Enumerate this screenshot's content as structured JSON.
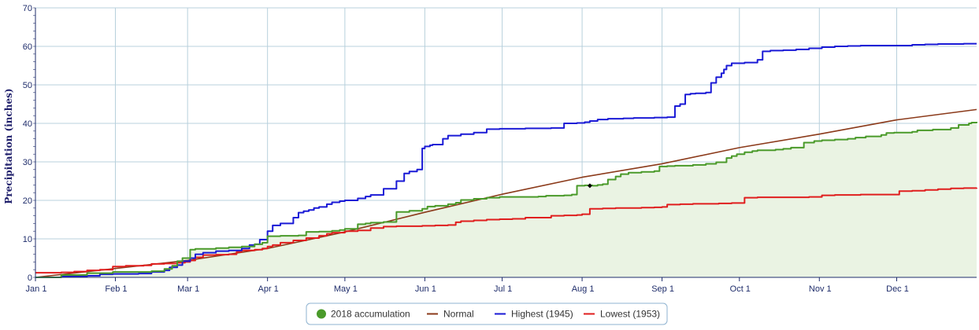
{
  "chart_data": {
    "type": "line",
    "ylabel": "Precipitation (inches)",
    "xlabel": "",
    "ylim": [
      0,
      70
    ],
    "yticks": [
      0,
      10,
      20,
      30,
      40,
      50,
      60,
      70
    ],
    "xlim": [
      0,
      365
    ],
    "x_unit": "day of year",
    "xticks": [
      {
        "label": "Jan 1",
        "day": 0
      },
      {
        "label": "Feb 1",
        "day": 31
      },
      {
        "label": "Mar 1",
        "day": 59
      },
      {
        "label": "Apr 1",
        "day": 90
      },
      {
        "label": "May 1",
        "day": 120
      },
      {
        "label": "Jun 1",
        "day": 151
      },
      {
        "label": "Jul 1",
        "day": 181
      },
      {
        "label": "Aug 1",
        "day": 212
      },
      {
        "label": "Sep 1",
        "day": 243
      },
      {
        "label": "Oct 1",
        "day": 273
      },
      {
        "label": "Nov 1",
        "day": 304
      },
      {
        "label": "Dec 1",
        "day": 334
      }
    ],
    "grid": true,
    "legend_position": "bottom-center",
    "colors": {
      "accumulation_line": "#4a9a2a",
      "accumulation_fill": "#eaf3e3",
      "normal": "#8b3a1a",
      "highest": "#1a1ad6",
      "lowest": "#e01e1e",
      "grid": "#b8d0dc",
      "axis": "#1f2d6b"
    },
    "series": [
      {
        "name": "2018 accumulation",
        "key": "accumulation",
        "step": true,
        "x": [
          0,
          10,
          20,
          30,
          45,
          50,
          53,
          55,
          57,
          60,
          62,
          65,
          70,
          75,
          80,
          85,
          88,
          90,
          95,
          100,
          102,
          105,
          110,
          115,
          118,
          120,
          125,
          128,
          130,
          135,
          140,
          145,
          150,
          152,
          155,
          160,
          163,
          165,
          170,
          175,
          180,
          190,
          195,
          198,
          205,
          208,
          210,
          213,
          216,
          218,
          220,
          222,
          225,
          227,
          230,
          235,
          240,
          242,
          245,
          248,
          255,
          260,
          264,
          268,
          270,
          272,
          275,
          278,
          280,
          283,
          287,
          290,
          293,
          298,
          302,
          305,
          310,
          315,
          318,
          322,
          328,
          330,
          333,
          335,
          340,
          342,
          348,
          355,
          358,
          362,
          363,
          365
        ],
        "y": [
          0,
          0.6,
          1.1,
          1.4,
          1.6,
          2.2,
          3.0,
          4.2,
          5.0,
          7.2,
          7.4,
          7.4,
          7.6,
          7.8,
          8.0,
          8.6,
          9.0,
          10.7,
          10.8,
          10.8,
          10.9,
          11.8,
          11.9,
          12.1,
          12.3,
          12.6,
          13.8,
          14.0,
          14.2,
          14.4,
          17.0,
          17.3,
          17.8,
          18.4,
          18.6,
          19.0,
          19.4,
          20.1,
          20.4,
          20.7,
          20.9,
          20.9,
          21.0,
          21.2,
          21.3,
          21.5,
          23.8,
          23.9,
          23.8,
          24.0,
          24.2,
          25.4,
          26.2,
          26.8,
          27.2,
          27.4,
          27.6,
          28.8,
          28.9,
          29.0,
          29.2,
          29.5,
          29.9,
          31.0,
          31.5,
          32.0,
          32.5,
          32.8,
          33.0,
          33.0,
          33.2,
          33.4,
          33.7,
          35.0,
          35.4,
          35.6,
          35.8,
          36.0,
          36.3,
          36.6,
          37.0,
          37.5,
          37.6,
          37.6,
          37.8,
          38.2,
          38.4,
          38.8,
          39.6,
          40.0,
          40.2,
          40.4
        ]
      },
      {
        "name": "Normal",
        "key": "normal",
        "step": false,
        "x": [
          0,
          31,
          59,
          90,
          120,
          151,
          181,
          212,
          243,
          273,
          304,
          334,
          365
        ],
        "y": [
          0,
          2.3,
          4.4,
          7.5,
          11.8,
          16.9,
          21.6,
          26.0,
          29.5,
          33.7,
          37.2,
          40.9,
          43.6
        ]
      },
      {
        "name": "Highest (1945)",
        "key": "highest",
        "step": true,
        "x": [
          0,
          10,
          20,
          25,
          30,
          40,
          45,
          50,
          52,
          55,
          57,
          60,
          62,
          65,
          70,
          75,
          80,
          83,
          85,
          87,
          90,
          92,
          95,
          100,
          102,
          104,
          106,
          108,
          110,
          113,
          115,
          118,
          120,
          125,
          128,
          130,
          135,
          140,
          143,
          145,
          148,
          150,
          151,
          153,
          154,
          158,
          160,
          165,
          170,
          175,
          180,
          190,
          200,
          205,
          210,
          213,
          215,
          218,
          222,
          228,
          232,
          240,
          245,
          248,
          250,
          252,
          254,
          256,
          260,
          262,
          264,
          266,
          267,
          268,
          270,
          272,
          275,
          280,
          282,
          285,
          290,
          295,
          300,
          305,
          310,
          315,
          320,
          330,
          340,
          345,
          350,
          355,
          360,
          365
        ],
        "y": [
          0,
          0.2,
          0.4,
          0.8,
          0.9,
          1.0,
          1.4,
          1.8,
          2.6,
          3.2,
          4.2,
          5.0,
          6.0,
          6.4,
          6.8,
          7.0,
          7.5,
          8.4,
          8.6,
          9.8,
          12.0,
          13.5,
          14.0,
          15.5,
          16.8,
          17.2,
          17.5,
          18.0,
          18.3,
          19.0,
          19.5,
          19.8,
          20.0,
          20.5,
          21.0,
          21.4,
          23.0,
          25.0,
          27.0,
          27.5,
          28.0,
          33.5,
          34.0,
          34.3,
          34.5,
          36.0,
          36.8,
          37.2,
          37.6,
          38.5,
          38.6,
          38.7,
          38.8,
          40.0,
          40.1,
          40.3,
          40.6,
          41.0,
          41.2,
          41.3,
          41.4,
          41.5,
          41.6,
          44.5,
          45.0,
          47.5,
          47.7,
          47.8,
          48.0,
          50.5,
          52.0,
          53.0,
          54.0,
          55.0,
          55.6,
          55.6,
          55.8,
          56.5,
          58.7,
          58.9,
          59.0,
          59.2,
          59.5,
          59.8,
          60.0,
          60.1,
          60.2,
          60.2,
          60.4,
          60.5,
          60.6,
          60.6,
          60.7,
          60.7
        ]
      },
      {
        "name": "Lowest (1953)",
        "key": "lowest",
        "step": true,
        "x": [
          0,
          5,
          10,
          15,
          20,
          25,
          30,
          35,
          40,
          42,
          45,
          50,
          55,
          58,
          60,
          62,
          65,
          70,
          75,
          78,
          80,
          85,
          88,
          90,
          92,
          95,
          100,
          105,
          110,
          113,
          115,
          120,
          125,
          130,
          135,
          140,
          145,
          150,
          155,
          160,
          163,
          165,
          170,
          175,
          180,
          185,
          190,
          200,
          205,
          210,
          212,
          215,
          220,
          225,
          230,
          235,
          240,
          243,
          245,
          250,
          255,
          260,
          265,
          270,
          273,
          275,
          280,
          290,
          300,
          305,
          310,
          320,
          330,
          335,
          340,
          345,
          350,
          355,
          360,
          365
        ],
        "y": [
          1.2,
          1.2,
          1.3,
          1.5,
          1.8,
          2.0,
          2.8,
          3.0,
          3.0,
          3.1,
          3.5,
          3.6,
          3.8,
          4.0,
          4.4,
          5.2,
          5.8,
          5.9,
          6.0,
          6.6,
          7.0,
          7.2,
          7.5,
          8.0,
          8.4,
          9.0,
          9.6,
          10.2,
          10.8,
          11.3,
          11.6,
          12.0,
          12.2,
          12.8,
          13.2,
          13.3,
          13.3,
          13.4,
          13.5,
          13.6,
          14.3,
          14.6,
          14.8,
          15.0,
          15.1,
          15.2,
          15.5,
          16.0,
          16.1,
          16.2,
          16.4,
          17.8,
          17.9,
          18.0,
          18.0,
          18.1,
          18.2,
          18.3,
          18.9,
          19.0,
          19.1,
          19.1,
          19.2,
          19.3,
          19.3,
          20.7,
          20.8,
          20.8,
          20.9,
          21.3,
          21.4,
          21.5,
          21.5,
          22.4,
          22.5,
          22.7,
          22.9,
          23.1,
          23.2,
          23.3
        ]
      }
    ],
    "marker": {
      "series": "accumulation",
      "x": 215,
      "y": 23.8
    }
  },
  "legend": [
    {
      "label": "2018 accumulation",
      "key": "accumulation",
      "shape": "circle"
    },
    {
      "label": "Normal",
      "key": "normal",
      "shape": "line"
    },
    {
      "label": "Highest (1945)",
      "key": "highest",
      "shape": "line"
    },
    {
      "label": "Lowest (1953)",
      "key": "lowest",
      "shape": "line"
    }
  ]
}
